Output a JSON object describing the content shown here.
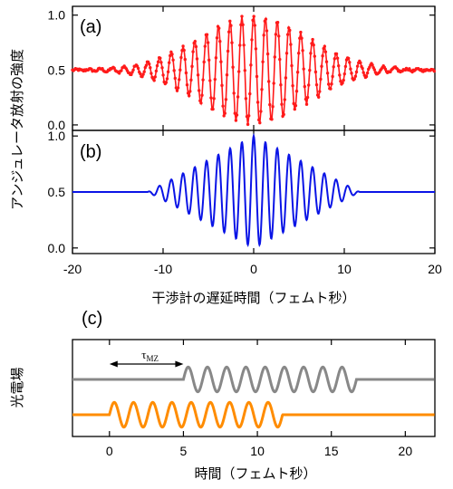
{
  "chart_data": [
    {
      "panel": "(a)",
      "type": "line",
      "xlabel": "",
      "ylabel": "アンジュレータ放射の強度",
      "xlim": [
        -20,
        20
      ],
      "ylim": [
        -0.05,
        1.08
      ],
      "yticks": [
        0.0,
        0.5,
        1.0
      ],
      "ytick_labels": [
        "0.0",
        "0.5",
        "1.0"
      ],
      "series": [
        {
          "color": "#ff1a1a",
          "markers": true,
          "model": {
            "offset": 0.5,
            "amplitude": 0.47,
            "center_fs": 0.0,
            "period_fs": 1.3,
            "gaussian_sigma_fs": 6.0,
            "x_start": -20,
            "x_end": 20,
            "x_step": 0.11
          }
        }
      ]
    },
    {
      "panel": "(b)",
      "type": "line",
      "xlabel": "干渉計の遅延時間（フェムト秒）",
      "ylabel": "アンジュレータ放射の強度",
      "xlim": [
        -20,
        20
      ],
      "ylim": [
        -0.05,
        1.05
      ],
      "xticks": [
        -20,
        -10,
        0,
        10,
        20
      ],
      "xtick_labels": [
        "-20",
        "-10",
        "0",
        "10",
        "20"
      ],
      "yticks": [
        0.0,
        0.5,
        1.0
      ],
      "ytick_labels": [
        "0.0",
        "0.5",
        "1.0"
      ],
      "series": [
        {
          "color": "#0a14e6",
          "markers": false,
          "model": {
            "offset": 0.5,
            "amplitude": 0.5,
            "center_fs": 0.0,
            "period_fs": 1.3,
            "envelope": "triangular",
            "support_fs": [
              -11.7,
              11.7
            ]
          }
        }
      ]
    },
    {
      "panel": "(c)",
      "type": "line",
      "xlabel": "時間（フェムト秒）",
      "ylabel": "光電場",
      "xlim": [
        -2.5,
        22
      ],
      "xticks": [
        0,
        5,
        10,
        15,
        20
      ],
      "xtick_labels": [
        "0",
        "5",
        "10",
        "15",
        "20"
      ],
      "annotation": {
        "label_main": "τ",
        "label_sub": "MZ",
        "from_x": 0,
        "to_x": 5
      },
      "series": [
        {
          "color": "#888888",
          "baseline": 1.0,
          "amplitude": 0.35,
          "wave_start_fs": 5.0,
          "cycles": 9,
          "period_fs": 1.3
        },
        {
          "color": "#ff8c00",
          "baseline": 0.0,
          "amplitude": 0.35,
          "wave_start_fs": 0.0,
          "cycles": 9,
          "period_fs": 1.3
        }
      ]
    }
  ]
}
